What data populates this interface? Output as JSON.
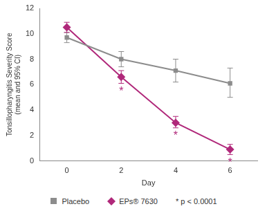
{
  "chart_data": {
    "type": "line",
    "x_label": "Day",
    "y_label": "Tonsillopharyngitis Severity Score (mean and 95% CI)",
    "xlim": [
      -1,
      7
    ],
    "xticks": [
      0,
      2,
      4,
      6
    ],
    "ylim": [
      0,
      12
    ],
    "yticks": [
      0,
      2,
      4,
      6,
      8,
      10,
      12
    ],
    "grid": false,
    "legend": "bottom",
    "series": [
      {
        "name": "Placebo",
        "color": "#8c8c8c",
        "marker": "square",
        "line_style": "solid",
        "x": [
          0,
          2,
          4,
          6
        ],
        "values": [
          9.7,
          8.0,
          7.1,
          6.1
        ],
        "error_low": [
          9.3,
          7.4,
          6.2,
          5.0
        ],
        "error_high": [
          10.1,
          8.6,
          8.0,
          7.3
        ]
      },
      {
        "name": "EPs® 7630",
        "color": "#b0287a",
        "marker": "diamond",
        "line_style": "solid",
        "x": [
          0,
          2,
          4,
          6
        ],
        "values": [
          10.5,
          6.6,
          3.0,
          0.9
        ],
        "error_low": [
          10.1,
          6.1,
          2.6,
          0.5
        ],
        "error_high": [
          10.9,
          7.1,
          3.5,
          1.3
        ]
      }
    ],
    "annotations": [
      {
        "x": 2,
        "text": "*"
      },
      {
        "x": 4,
        "text": "*"
      },
      {
        "x": 6,
        "text": "*"
      },
      {
        "text": "* p < 0.0001"
      }
    ]
  }
}
